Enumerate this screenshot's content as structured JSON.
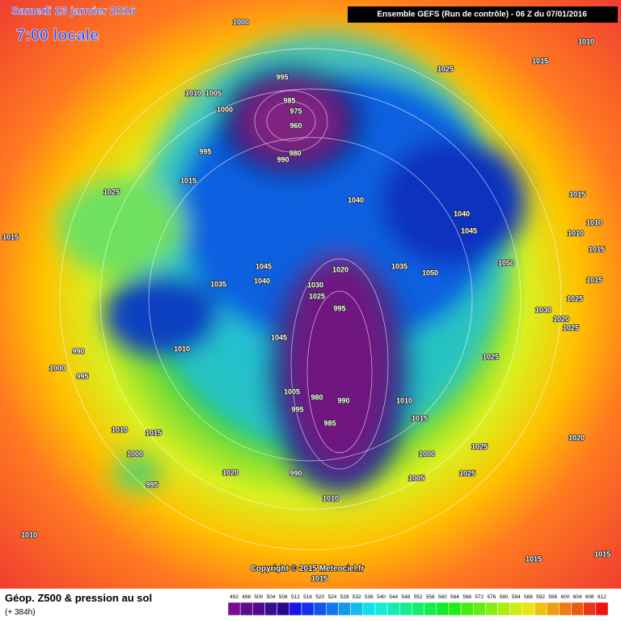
{
  "header": {
    "date": "Samedi 23 janvier 2016",
    "time": "7:00 locale",
    "run": "Ensemble GEFS  (Run de contrôle)  -  06 Z du 07/01/2016"
  },
  "map": {
    "isobar_labels": [
      1000,
      1010,
      1015,
      1025,
      995,
      1010,
      1005,
      1000,
      985,
      975,
      960,
      980,
      990,
      995,
      1015,
      1025,
      1040,
      1015,
      1040,
      1010,
      1045,
      1010,
      1015,
      1015,
      1020,
      1035,
      1050,
      1050,
      1045,
      1040,
      1035,
      1030,
      1025,
      995,
      1015,
      1025,
      1030,
      1020,
      1025,
      1045,
      1010,
      990,
      1000,
      995,
      1025,
      1005,
      980,
      990,
      1010,
      995,
      1015,
      985,
      1010,
      1015,
      1020,
      1000,
      1025,
      1000,
      1025,
      990,
      995,
      1020,
      1005,
      1010,
      1010,
      1015,
      1015,
      1015
    ],
    "copyright": "Copyright © 2015 Meteociel.fr"
  },
  "footer": {
    "title": "Géop. Z500 & pression au sol",
    "lead": "(+ 384h)",
    "scale": [
      492,
      496,
      500,
      504,
      508,
      512,
      516,
      520,
      524,
      528,
      532,
      536,
      540,
      544,
      548,
      552,
      556,
      560,
      564,
      568,
      572,
      576,
      580,
      584,
      588,
      592,
      596,
      600,
      604,
      608,
      612
    ]
  }
}
